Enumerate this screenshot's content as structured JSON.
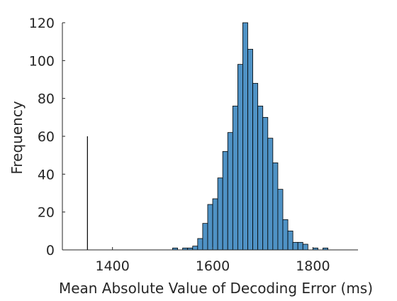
{
  "chart_data": {
    "type": "bar",
    "title": "",
    "xlabel": "Mean Absolute Value of Decoding Error (ms)",
    "ylabel": "Frequency",
    "xlim": [
      1300,
      1890
    ],
    "ylim": [
      0,
      120
    ],
    "xticks": [
      1400,
      1600,
      1800
    ],
    "yticks": [
      0,
      20,
      40,
      60,
      80,
      100,
      120
    ],
    "grid": false,
    "bar_color": "#4f92c5",
    "bar_edge_color": "#000000",
    "bin_width": 10,
    "bins": [
      {
        "x0": 1520,
        "x1": 1530,
        "count": 1
      },
      {
        "x0": 1530,
        "x1": 1540,
        "count": 0
      },
      {
        "x0": 1540,
        "x1": 1550,
        "count": 1
      },
      {
        "x0": 1550,
        "x1": 1560,
        "count": 1
      },
      {
        "x0": 1560,
        "x1": 1570,
        "count": 2
      },
      {
        "x0": 1570,
        "x1": 1580,
        "count": 6
      },
      {
        "x0": 1580,
        "x1": 1590,
        "count": 14
      },
      {
        "x0": 1590,
        "x1": 1600,
        "count": 24
      },
      {
        "x0": 1600,
        "x1": 1610,
        "count": 27
      },
      {
        "x0": 1610,
        "x1": 1620,
        "count": 38
      },
      {
        "x0": 1620,
        "x1": 1630,
        "count": 52
      },
      {
        "x0": 1630,
        "x1": 1640,
        "count": 62
      },
      {
        "x0": 1640,
        "x1": 1650,
        "count": 76
      },
      {
        "x0": 1650,
        "x1": 1660,
        "count": 98
      },
      {
        "x0": 1660,
        "x1": 1670,
        "count": 120
      },
      {
        "x0": 1670,
        "x1": 1680,
        "count": 106
      },
      {
        "x0": 1680,
        "x1": 1690,
        "count": 88
      },
      {
        "x0": 1690,
        "x1": 1700,
        "count": 76
      },
      {
        "x0": 1700,
        "x1": 1710,
        "count": 70
      },
      {
        "x0": 1710,
        "x1": 1720,
        "count": 59
      },
      {
        "x0": 1720,
        "x1": 1730,
        "count": 46
      },
      {
        "x0": 1730,
        "x1": 1740,
        "count": 32
      },
      {
        "x0": 1740,
        "x1": 1750,
        "count": 16
      },
      {
        "x0": 1750,
        "x1": 1760,
        "count": 10
      },
      {
        "x0": 1760,
        "x1": 1770,
        "count": 4
      },
      {
        "x0": 1770,
        "x1": 1780,
        "count": 4
      },
      {
        "x0": 1780,
        "x1": 1790,
        "count": 3
      },
      {
        "x0": 1790,
        "x1": 1800,
        "count": 0
      },
      {
        "x0": 1800,
        "x1": 1810,
        "count": 1
      },
      {
        "x0": 1810,
        "x1": 1820,
        "count": 0
      },
      {
        "x0": 1820,
        "x1": 1830,
        "count": 1
      }
    ],
    "reference_line": {
      "x": 1350,
      "y_top": 60,
      "color": "#000000"
    }
  }
}
